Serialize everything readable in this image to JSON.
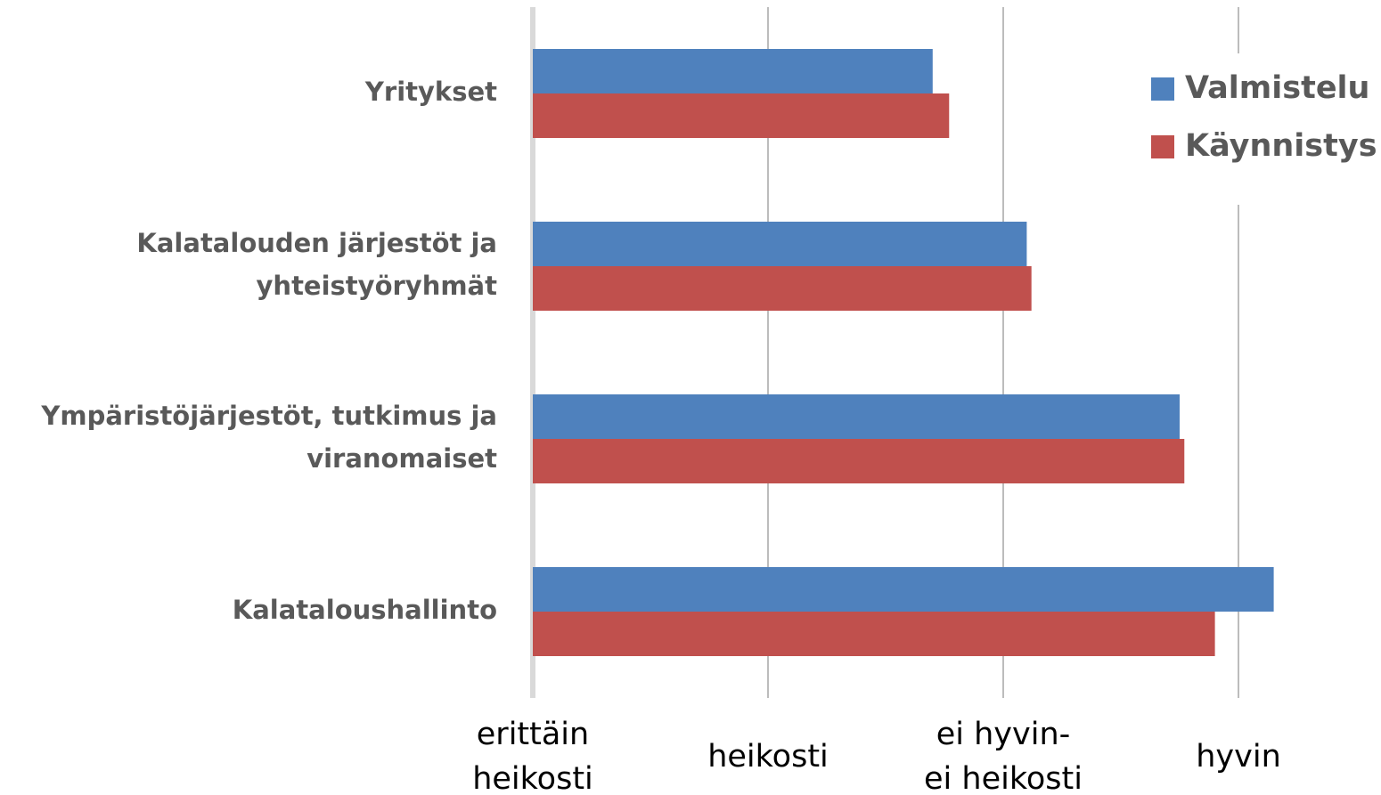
{
  "chart_data": {
    "type": "barh",
    "categories": [
      "Yritykset",
      "Kalatalouden järjestöt ja\nyhteistyöryhmät",
      "Ympäristöjärjestöt, tutkimus ja\nviranomaiset",
      "Kalataloushallinto"
    ],
    "series": [
      {
        "name": "Valmistelu",
        "color": "#4f81bd",
        "values": [
          2.7,
          3.1,
          3.75,
          4.15
        ]
      },
      {
        "name": "Käynnistys",
        "color": "#c0504d",
        "values": [
          2.77,
          3.12,
          3.77,
          3.9
        ]
      }
    ],
    "xlim": [
      1,
      4.5
    ],
    "xticks": [
      {
        "value": 1,
        "label": "erittäin\nheikosti"
      },
      {
        "value": 2,
        "label": "heikosti"
      },
      {
        "value": 3,
        "label": "ei hyvin-\nei heikosti"
      },
      {
        "value": 4,
        "label": "hyvin"
      }
    ],
    "grid": true,
    "legend": "top-right"
  }
}
